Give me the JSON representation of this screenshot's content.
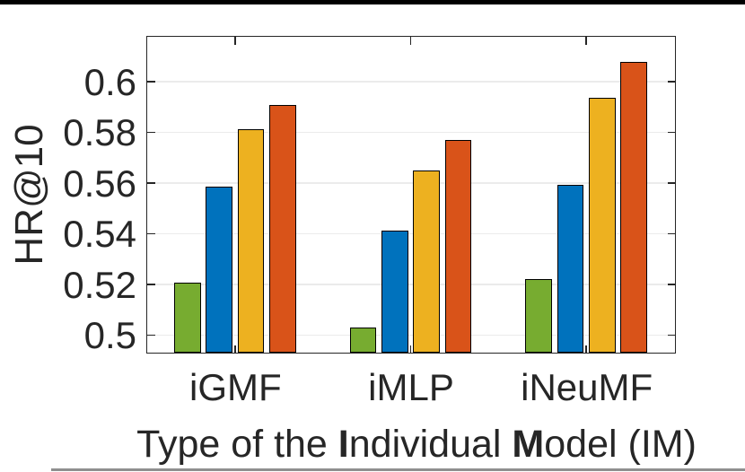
{
  "figure": {
    "top_rule_color": "#000000",
    "bottom_rule_color": "#8f8f8f"
  },
  "chart_data": {
    "type": "bar",
    "title": "",
    "xlabel": "Type of the Individual Model (IM)",
    "xlabel_parts": [
      {
        "text": "Type of the ",
        "bold": false
      },
      {
        "text": "I",
        "bold": true
      },
      {
        "text": "ndividual ",
        "bold": false
      },
      {
        "text": "M",
        "bold": true
      },
      {
        "text": "odel (IM)",
        "bold": false
      }
    ],
    "ylabel": "HR@10",
    "categories": [
      "iGMF",
      "iMLP",
      "iNeuMF"
    ],
    "series": [
      {
        "name": "green",
        "color": "#77AC30",
        "values": [
          0.521,
          0.5035,
          0.5225
        ]
      },
      {
        "name": "blue",
        "color": "#0072BD",
        "values": [
          0.559,
          0.5415,
          0.5595
        ]
      },
      {
        "name": "yellow",
        "color": "#EDB120",
        "values": [
          0.5815,
          0.5655,
          0.594
        ]
      },
      {
        "name": "orange-red",
        "color": "#D95319",
        "values": [
          0.591,
          0.5775,
          0.608
        ]
      }
    ],
    "yticks": [
      0.5,
      0.52,
      0.54,
      0.56,
      0.58,
      0.6
    ],
    "ytick_labels": [
      "0.5",
      "0.52",
      "0.54",
      "0.56",
      "0.58",
      "0.6"
    ],
    "ylim": [
      0.4935,
      0.6177
    ],
    "grid": "horizontal-only",
    "legend": "none",
    "bar_edge_color": "#000000",
    "axis_color": "#262626",
    "grid_color": "#ebebeb",
    "text_color": "#262626"
  }
}
